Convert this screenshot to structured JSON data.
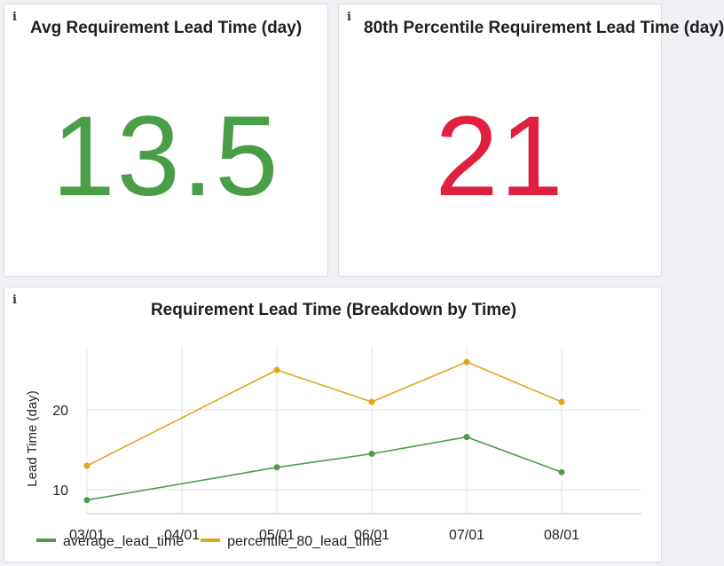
{
  "panels": {
    "avg": {
      "info_icon": "i",
      "title": "Avg Requirement Lead Time (day)",
      "value": "13.5",
      "value_color": "#4a9e47"
    },
    "p80": {
      "info_icon": "i",
      "title": "80th Percentile Requirement Lead Time (day)",
      "value": "21",
      "value_color": "#e0203f"
    },
    "chart": {
      "info_icon": "i",
      "title": "Requirement Lead Time (Breakdown by Time)"
    }
  },
  "chart_data": {
    "type": "line",
    "title": "Requirement Lead Time (Breakdown by Time)",
    "xlabel": "",
    "ylabel": "Lead Time (day)",
    "x": [
      "03/01",
      "04/01",
      "05/01",
      "06/01",
      "07/01",
      "08/01"
    ],
    "yticks": [
      10,
      20
    ],
    "ylim": [
      7,
      28
    ],
    "grid": true,
    "legend": "bottom-left",
    "series": [
      {
        "name": "average_lead_time",
        "color": "#4a9e47",
        "points": [
          {
            "x": "03/01",
            "y": 8.7
          },
          {
            "x": "05/01",
            "y": 12.8
          },
          {
            "x": "06/01",
            "y": 14.5
          },
          {
            "x": "07/01",
            "y": 16.6
          },
          {
            "x": "08/01",
            "y": 12.2
          }
        ]
      },
      {
        "name": "percentile_80_lead_time",
        "color": "#dfa81c",
        "points": [
          {
            "x": "03/01",
            "y": 13.0
          },
          {
            "x": "05/01",
            "y": 25.0
          },
          {
            "x": "06/01",
            "y": 21.0
          },
          {
            "x": "07/01",
            "y": 26.0
          },
          {
            "x": "08/01",
            "y": 21.0
          }
        ]
      }
    ]
  }
}
